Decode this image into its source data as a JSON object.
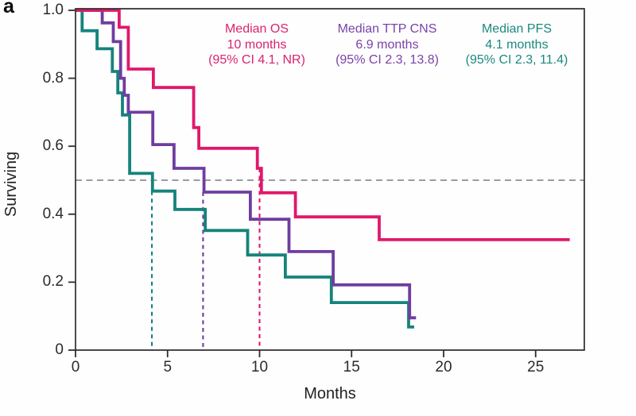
{
  "panel_label": "a",
  "chart_data": {
    "type": "line",
    "subtype": "kaplan_meier_step",
    "title": "",
    "xlabel": "Months",
    "ylabel": "Surviving",
    "xlim": [
      0,
      27.6
    ],
    "ylim": [
      0,
      1.0
    ],
    "grid": false,
    "x_tick_values": [
      0,
      5,
      10,
      15,
      20,
      25
    ],
    "x_tick_labels": [
      "0",
      "5",
      "10",
      "15",
      "20",
      "25"
    ],
    "y_tick_values": [
      1.0,
      0.8,
      0.6,
      0.4,
      0.2,
      0
    ],
    "y_tick_labels": [
      "1.0",
      "0.8",
      "0.6",
      "0.4",
      "0.2",
      "0"
    ],
    "reference_line_y": 0.5,
    "reference_line_color": "#8d8d96",
    "series": [
      {
        "name": "OS",
        "color": "#e0186c",
        "median_months": 10.0,
        "ci_95": "4.1, NR",
        "median_dash_x": 10.0,
        "median_dash_top": 0.535,
        "steps": [
          [
            0,
            1.0
          ],
          [
            2.37,
            0.95
          ],
          [
            2.87,
            0.827
          ],
          [
            4.23,
            0.773
          ],
          [
            6.42,
            0.655
          ],
          [
            6.7,
            0.594
          ],
          [
            9.88,
            0.535
          ],
          [
            10.1,
            0.463
          ],
          [
            11.95,
            0.392
          ],
          [
            16.5,
            0.325
          ]
        ],
        "end_month": 26.85
      },
      {
        "name": "TTP CNS",
        "color": "#6f3da1",
        "median_months": 6.9,
        "ci_95": "2.3, 13.8",
        "median_dash_x": 6.93,
        "median_dash_top": 0.465,
        "steps": [
          [
            0,
            1.0
          ],
          [
            1.45,
            0.963
          ],
          [
            2.05,
            0.908
          ],
          [
            2.45,
            0.8
          ],
          [
            2.65,
            0.75
          ],
          [
            2.87,
            0.7
          ],
          [
            4.2,
            0.605
          ],
          [
            5.35,
            0.535
          ],
          [
            6.98,
            0.465
          ],
          [
            9.5,
            0.385
          ],
          [
            11.6,
            0.29
          ],
          [
            14.0,
            0.192
          ],
          [
            18.15,
            0.095
          ]
        ],
        "end_month": 18.5
      },
      {
        "name": "PFS",
        "color": "#15837b",
        "median_months": 4.1,
        "ci_95": "2.3, 11.4",
        "median_dash_x": 4.15,
        "median_dash_top": 0.468,
        "steps": [
          [
            0,
            1.0
          ],
          [
            0.36,
            0.94
          ],
          [
            1.17,
            0.887
          ],
          [
            2.0,
            0.82
          ],
          [
            2.3,
            0.757
          ],
          [
            2.55,
            0.692
          ],
          [
            2.94,
            0.52
          ],
          [
            4.18,
            0.468
          ],
          [
            5.4,
            0.414
          ],
          [
            7.05,
            0.352
          ],
          [
            9.35,
            0.28
          ],
          [
            11.4,
            0.215
          ],
          [
            13.9,
            0.14
          ],
          [
            18.1,
            0.068
          ]
        ],
        "end_month": 18.4
      }
    ],
    "annotations": [
      {
        "line1": "Median OS",
        "line2": "10 months",
        "line3": "(95% CI 4.1, NR)",
        "color": "#d92371"
      },
      {
        "line1": "Median TTP CNS",
        "line2": "6.9 months",
        "line3": "(95% CI 2.3, 13.8)",
        "color": "#7b42a8"
      },
      {
        "line1": "Median PFS",
        "line2": "4.1 months",
        "line3": "(95% CI 2.3, 11.4)",
        "color": "#1b897f"
      }
    ]
  }
}
